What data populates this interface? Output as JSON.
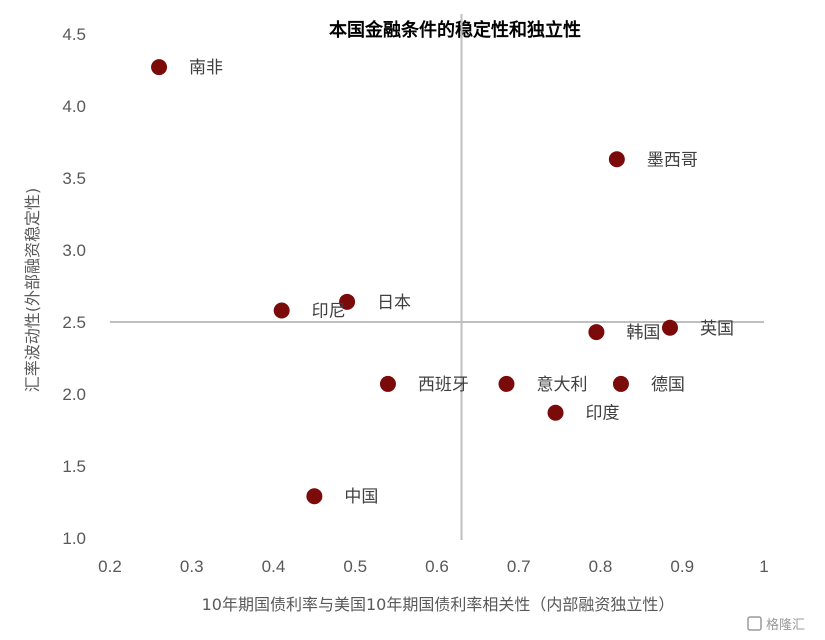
{
  "chart_data": {
    "type": "scatter",
    "title": "本国金融条件的稳定性和独立性",
    "xlabel": "10年期国债利率与美国10年期国债利率相关性（内部融资独立性）",
    "ylabel": "汇率波动性(外部融资稳定性)",
    "xlim": [
      0.2,
      1.0
    ],
    "ylim": [
      1.0,
      4.5
    ],
    "x_ticks": [
      "0.2",
      "0.3",
      "0.4",
      "0.5",
      "0.6",
      "0.7",
      "0.8",
      "0.9",
      "1"
    ],
    "y_ticks": [
      "1.0",
      "1.5",
      "2.0",
      "2.5",
      "3.0",
      "3.5",
      "4.0",
      "4.5"
    ],
    "reference_lines": {
      "x": 0.63,
      "y": 2.5
    },
    "grid": false,
    "marker_color": "#7b0a0a",
    "points": [
      {
        "label": "南非",
        "x": 0.26,
        "y": 4.27
      },
      {
        "label": "墨西哥",
        "x": 0.82,
        "y": 3.63
      },
      {
        "label": "日本",
        "x": 0.49,
        "y": 2.64
      },
      {
        "label": "印尼",
        "x": 0.41,
        "y": 2.58
      },
      {
        "label": "英国",
        "x": 0.885,
        "y": 2.46
      },
      {
        "label": "韩国",
        "x": 0.795,
        "y": 2.43
      },
      {
        "label": "西班牙",
        "x": 0.54,
        "y": 2.07
      },
      {
        "label": "意大利",
        "x": 0.685,
        "y": 2.07
      },
      {
        "label": "德国",
        "x": 0.825,
        "y": 2.07
      },
      {
        "label": "印度",
        "x": 0.745,
        "y": 1.87
      },
      {
        "label": "中国",
        "x": 0.45,
        "y": 1.29
      }
    ]
  },
  "watermark": "格隆汇"
}
